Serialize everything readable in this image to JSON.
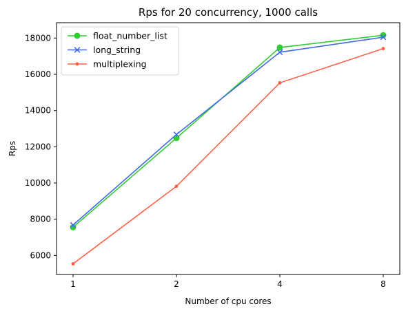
{
  "chart_data": {
    "type": "line",
    "title": "Rps for 20 concurrency, 1000 calls",
    "xlabel": "Number of cpu cores",
    "ylabel": "Rps",
    "categories": [
      "1",
      "2",
      "4",
      "8"
    ],
    "yticks": [
      "6000",
      "8000",
      "10000",
      "12000",
      "14000",
      "16000",
      "18000"
    ],
    "ylim": [
      4950,
      18850
    ],
    "grid": false,
    "legend_position": "top-left",
    "series": [
      {
        "name": "float_number_list",
        "color": "#32cd32",
        "marker": "circle",
        "values": [
          7560,
          12480,
          17480,
          18160
        ]
      },
      {
        "name": "long_string",
        "color": "#4169e1",
        "marker": "x",
        "values": [
          7680,
          12680,
          17220,
          18050
        ]
      },
      {
        "name": "multiplexing",
        "color": "#ff6347",
        "marker": "dot",
        "values": [
          5540,
          9820,
          15530,
          17420
        ]
      }
    ]
  }
}
